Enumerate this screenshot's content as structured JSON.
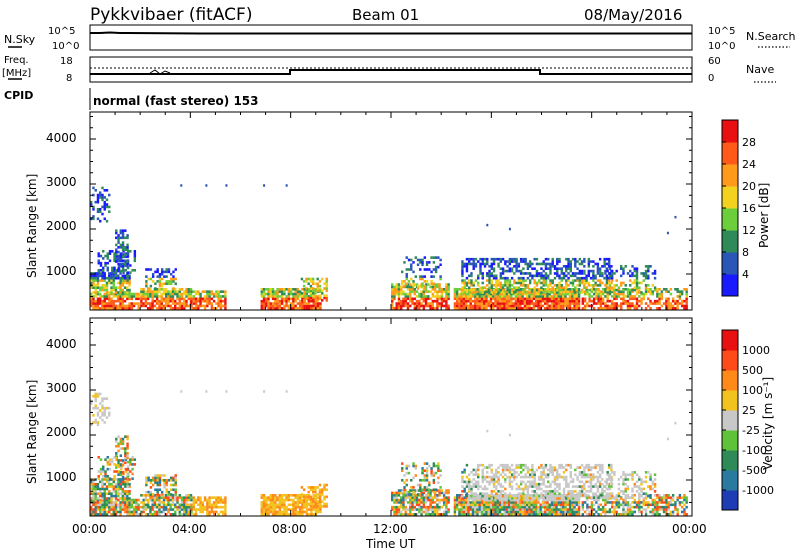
{
  "header": {
    "title": "Pykkvibaer (fitACF)",
    "beam": "Beam 01",
    "date": "08/May/2016"
  },
  "strip_panels": {
    "nsky": {
      "label": "N.Sky",
      "ticks_left": [
        "10^5",
        "10^0"
      ],
      "ticks_right": [
        "10^5",
        "10^0"
      ],
      "right_label": "N.Search"
    },
    "freq": {
      "label_line1": "Freq.",
      "label_line2": "[MHz]",
      "ticks_left": [
        "18",
        "8"
      ],
      "ticks_right": [
        "60",
        "0"
      ],
      "right_label": "Nave"
    },
    "cpid": {
      "label": "CPID",
      "text": "normal (fast stereo) 153"
    }
  },
  "chart_data": [
    {
      "type": "heatmap",
      "panel": "power",
      "ylabel": "Slant Range [km]",
      "yticks": [
        "1000",
        "2000",
        "3000",
        "4000"
      ],
      "ylim": [
        200,
        4600
      ],
      "xlim_hours": [
        0,
        24
      ],
      "colorbar": {
        "label": "Power [dB]",
        "ticks": [
          "4",
          "8",
          "12",
          "16",
          "20",
          "24",
          "28"
        ],
        "colors": [
          "#1a1aff",
          "#2a56b8",
          "#2e8b57",
          "#6dce3c",
          "#f2d21e",
          "#ff9a1a",
          "#ff5a1a",
          "#e81010"
        ]
      }
    },
    {
      "type": "heatmap",
      "panel": "velocity",
      "ylabel": "Slant Range [km]",
      "yticks": [
        "1000",
        "2000",
        "3000",
        "4000"
      ],
      "ylim": [
        200,
        4600
      ],
      "xlim_hours": [
        0,
        24
      ],
      "colorbar": {
        "label": "Velocity [m s⁻¹]",
        "ticks": [
          "1000",
          "500",
          "100",
          "25",
          "-25",
          "-100",
          "-500",
          "-1000"
        ],
        "colors": [
          "#1e3cb4",
          "#2a7aa0",
          "#2e8b57",
          "#5fc33a",
          "#c8c8c8",
          "#f2c21e",
          "#ff8a1a",
          "#ff4a1a",
          "#e81010"
        ]
      }
    }
  ],
  "xaxis": {
    "ticks": [
      "00:00",
      "04:00",
      "08:00",
      "12:00",
      "16:00",
      "20:00",
      "00:00"
    ],
    "label": "Time UT"
  }
}
